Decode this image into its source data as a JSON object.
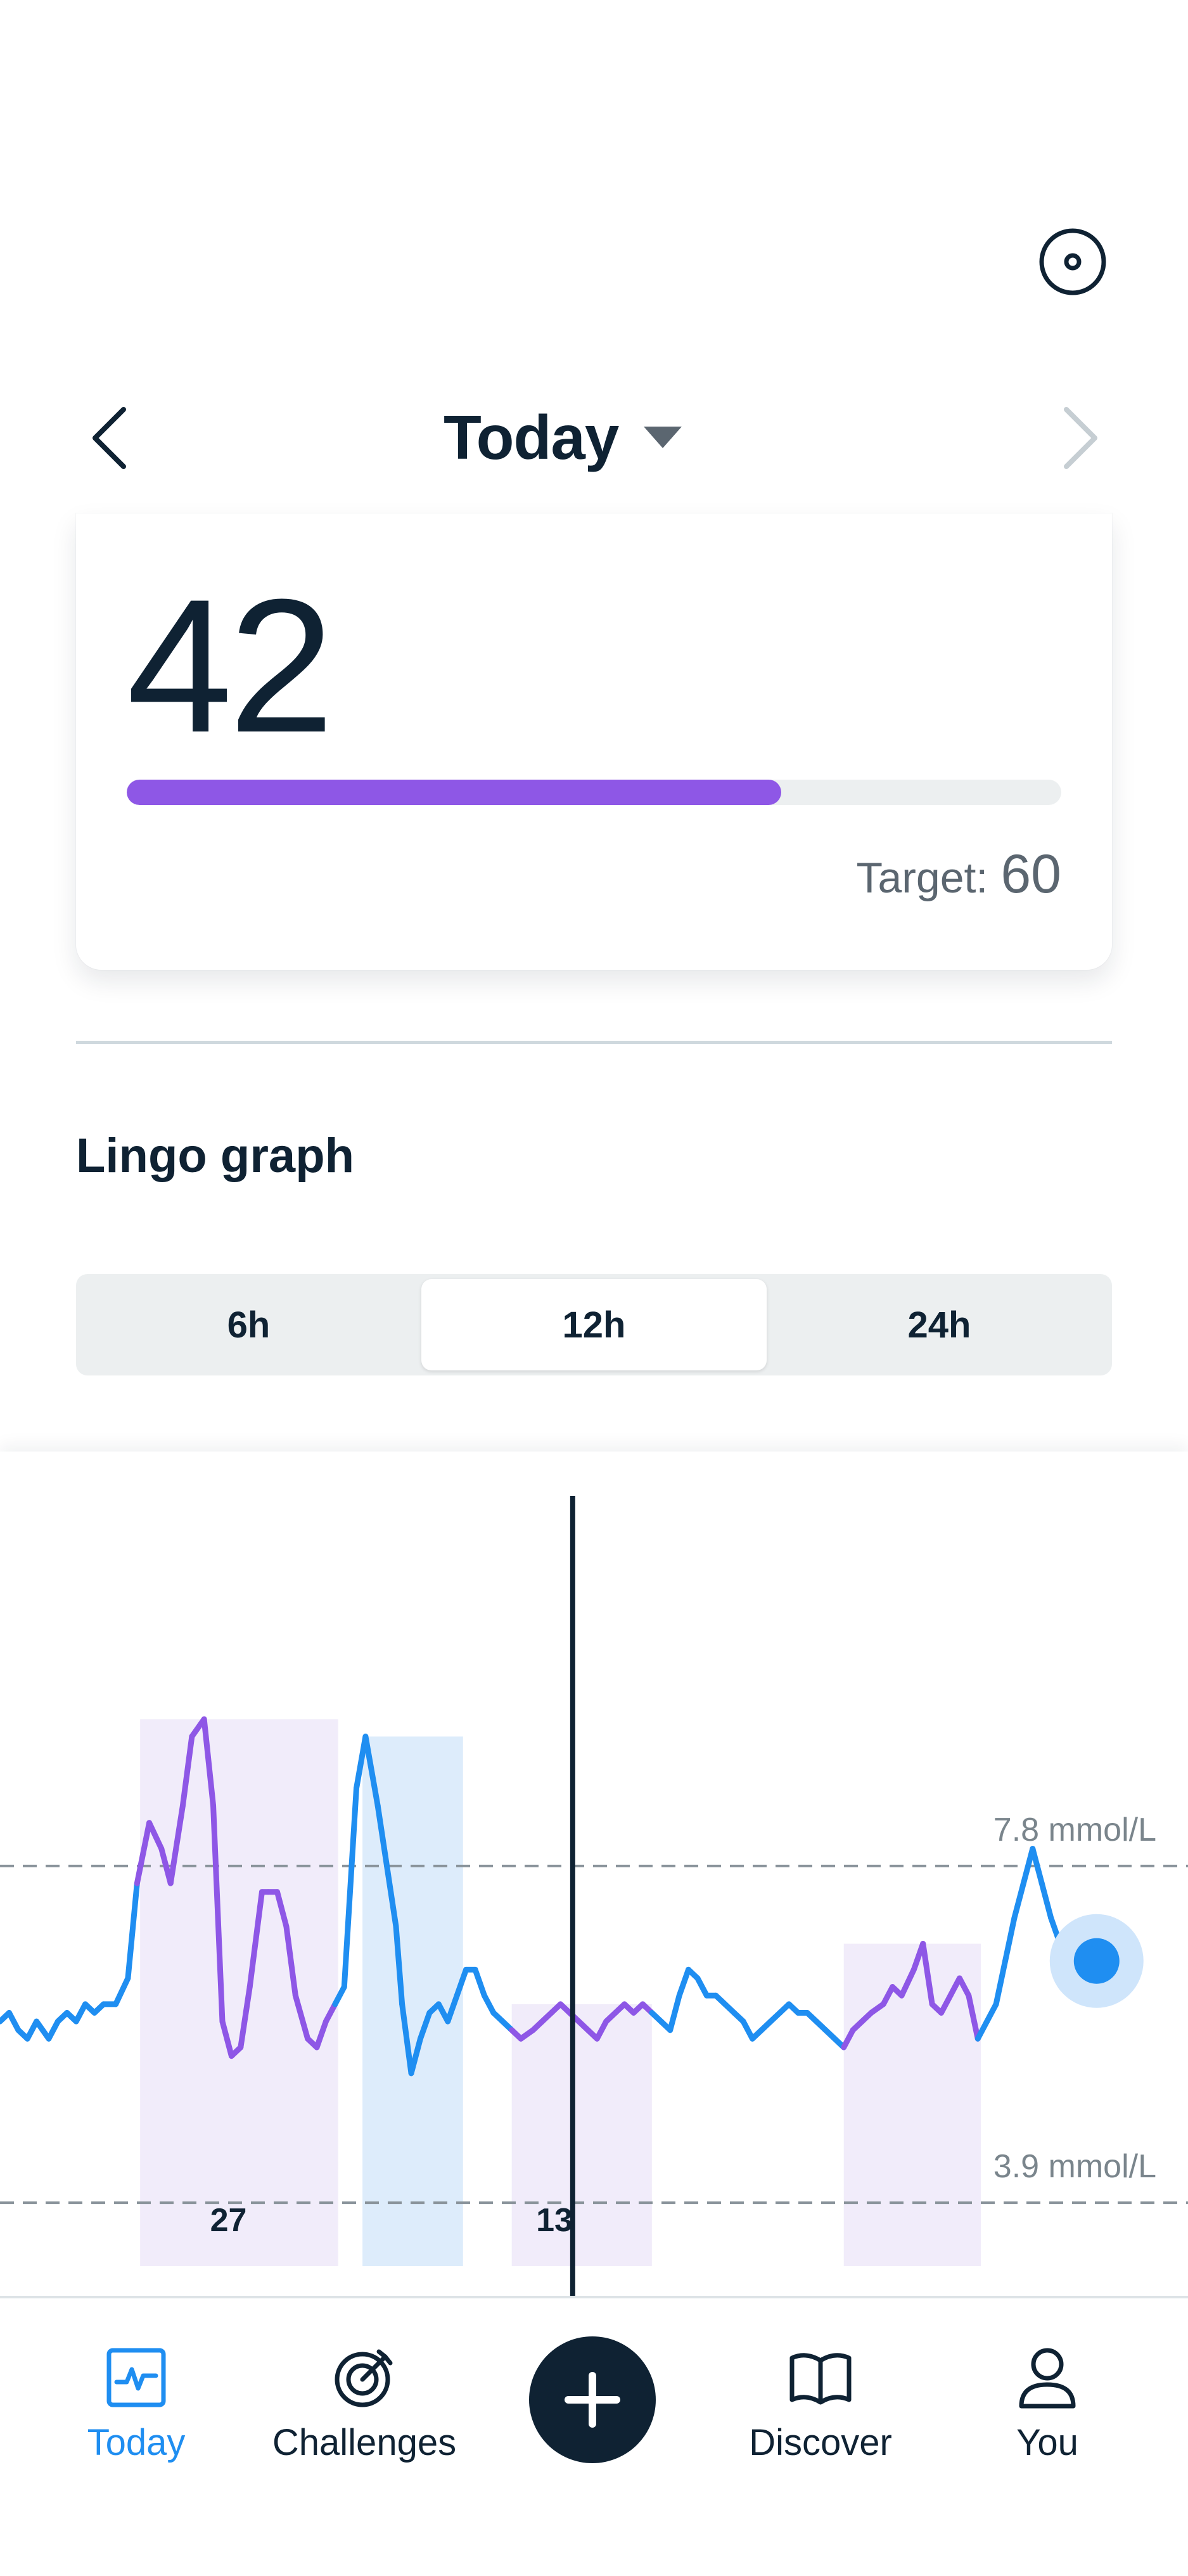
{
  "header": {
    "date_label": "Today",
    "prev_icon": "chevron-left-icon",
    "next_icon": "chevron-right-icon",
    "dropdown_icon": "caret-down-icon",
    "settings_icon": "target-icon"
  },
  "score_card": {
    "score": "42",
    "target_label": "Target:",
    "target_value": "60",
    "progress_fraction": 0.7,
    "progress_color": "#8e57e6"
  },
  "graph": {
    "title": "Lingo graph",
    "ranges": [
      {
        "label": "6h",
        "active": false
      },
      {
        "label": "12h",
        "active": true
      },
      {
        "label": "24h",
        "active": false
      }
    ]
  },
  "chart_data": {
    "type": "line",
    "xlabel": "",
    "ylabel": "",
    "unit": "mmol/L",
    "reference_lines": [
      {
        "value": 7.8,
        "label": "7.8 mmol/L"
      },
      {
        "value": 3.9,
        "label": "3.9 mmol/L"
      }
    ],
    "ylim": [
      2.8,
      12.6
    ],
    "series": [
      {
        "color_in_range": "#1f8ef1",
        "color_spike": "#8e57e6",
        "x": [
          0,
          3,
          6,
          9,
          12,
          14,
          16,
          19,
          22,
          25,
          28,
          31,
          34,
          38,
          42,
          45,
          49,
          53,
          56,
          60,
          63,
          67,
          70,
          73,
          76,
          79,
          82,
          86,
          88,
          91,
          94,
          97,
          101,
          104,
          107,
          110,
          113,
          117,
          120,
          124,
          127,
          130,
          132,
          135,
          138,
          141,
          144,
          147,
          150,
          153,
          156,
          159,
          162,
          165,
          168,
          171,
          175,
          178,
          181,
          184,
          187,
          190,
          193,
          196,
          199,
          202,
          205,
          208,
          211,
          214,
          217,
          220,
          223,
          226,
          229,
          232,
          235,
          238,
          241,
          244,
          247,
          250,
          253,
          256,
          259,
          262,
          265,
          268,
          271,
          274,
          277,
          280,
          283,
          286,
          290,
          293,
          296,
          300,
          303,
          306,
          309,
          312,
          315,
          318,
          321,
          324,
          327,
          330,
          333,
          336,
          339,
          342,
          345,
          348,
          351,
          354,
          357,
          360
        ],
        "y": [
          6.0,
          6.1,
          5.9,
          5.8,
          6.0,
          5.9,
          5.8,
          6.0,
          6.1,
          6.0,
          6.2,
          6.1,
          6.2,
          6.2,
          6.5,
          7.6,
          8.3,
          8.0,
          7.6,
          8.5,
          9.3,
          9.5,
          8.5,
          6.0,
          5.6,
          5.7,
          6.4,
          7.5,
          7.5,
          7.5,
          7.1,
          6.3,
          5.8,
          5.7,
          6.0,
          6.2,
          6.4,
          8.7,
          9.3,
          8.5,
          7.8,
          7.1,
          6.2,
          5.4,
          5.8,
          6.1,
          6.2,
          6.0,
          6.3,
          6.6,
          6.6,
          6.3,
          6.1,
          6.0,
          5.9,
          5.8,
          5.9,
          6.0,
          6.1,
          6.2,
          6.1,
          6.0,
          5.9,
          5.8,
          6.0,
          6.1,
          6.2,
          6.1,
          6.2,
          6.1,
          6.0,
          5.9,
          6.3,
          6.6,
          6.5,
          6.3,
          6.3,
          6.2,
          6.1,
          6.0,
          5.8,
          5.9,
          6.0,
          6.1,
          6.2,
          6.1,
          6.1,
          6.0,
          5.9,
          5.8,
          5.7,
          5.9,
          6.0,
          6.1,
          6.2,
          6.4,
          6.3,
          6.6,
          6.9,
          6.2,
          6.1,
          6.3,
          6.5,
          6.3,
          5.8,
          6.0,
          6.2,
          6.7,
          7.2,
          7.6,
          8.0,
          7.6,
          7.2,
          6.9,
          6.6,
          6.5,
          6.6,
          6.7
        ]
      }
    ],
    "annotations": [
      {
        "label": "27"
      },
      {
        "label": "13"
      }
    ]
  },
  "bottom_nav": {
    "items": [
      {
        "label": "Today",
        "icon": "activity-icon",
        "active": true
      },
      {
        "label": "Challenges",
        "icon": "target-dart-icon",
        "active": false
      },
      {
        "label": "Discover",
        "icon": "book-icon",
        "active": false
      },
      {
        "label": "You",
        "icon": "user-icon",
        "active": false
      }
    ],
    "add_icon": "plus-icon"
  }
}
